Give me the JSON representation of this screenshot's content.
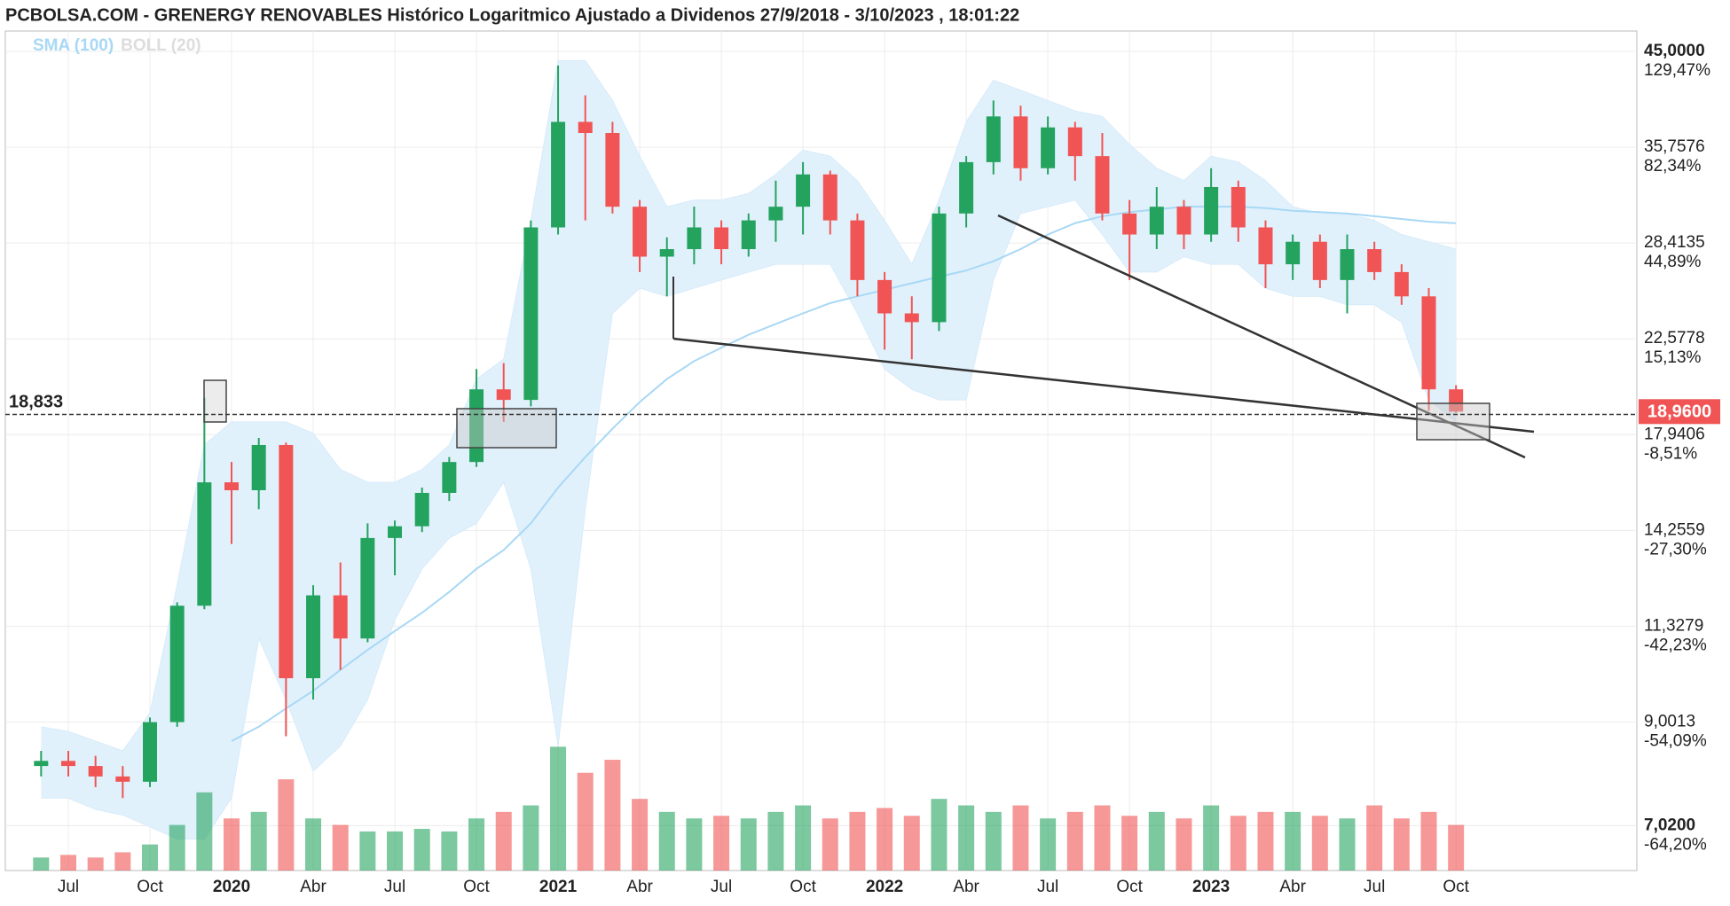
{
  "chart_data": {
    "type": "candlestick",
    "title": "PCBOLSA.COM - GRENERGY RENOVABLES Histórico Logaritmico Ajustado a Dividenos 27/9/2018 - 3/10/2023 , 18:01:22",
    "indicators": [
      {
        "name": "SMA (100)",
        "color": "#a8d8f5"
      },
      {
        "name": "BOLL (20)",
        "color": "#dddddd"
      }
    ],
    "log_scale": true,
    "grid": true,
    "up_color": "#24a35f",
    "down_color": "#f05454",
    "x": [
      "2019-06",
      "2019-07",
      "2019-08",
      "2019-09",
      "2019-10",
      "2019-11",
      "2019-12",
      "2020-01",
      "2020-02",
      "2020-03",
      "2020-04",
      "2020-05",
      "2020-06",
      "2020-07",
      "2020-08",
      "2020-09",
      "2020-10",
      "2020-11",
      "2020-12",
      "2021-01",
      "2021-02",
      "2021-03",
      "2021-04",
      "2021-05",
      "2021-06",
      "2021-07",
      "2021-08",
      "2021-09",
      "2021-10",
      "2021-11",
      "2021-12",
      "2022-01",
      "2022-02",
      "2022-03",
      "2022-04",
      "2022-05",
      "2022-06",
      "2022-07",
      "2022-08",
      "2022-09",
      "2022-10",
      "2022-11",
      "2022-12",
      "2023-01",
      "2023-02",
      "2023-03",
      "2023-04",
      "2023-05",
      "2023-06",
      "2023-07",
      "2023-08",
      "2023-09",
      "2023-10"
    ],
    "open": [
      8.1,
      8.2,
      8.1,
      7.9,
      7.8,
      9.0,
      11.9,
      16.0,
      15.7,
      17.5,
      10.0,
      12.2,
      11.0,
      14.0,
      14.4,
      15.6,
      16.8,
      20.0,
      19.5,
      29.5,
      38.0,
      37.0,
      31.0,
      27.5,
      28.0,
      29.5,
      28.0,
      30.0,
      31.0,
      33.5,
      30.0,
      26.0,
      24.0,
      23.5,
      30.5,
      34.5,
      38.5,
      34.0,
      37.5,
      35.0,
      30.5,
      29.0,
      31.0,
      29.0,
      32.5,
      29.5,
      27.0,
      28.5,
      26.0,
      28.0,
      26.5,
      25.0,
      20.0
    ],
    "high": [
      8.4,
      8.4,
      8.3,
      8.1,
      9.1,
      12.0,
      19.6,
      16.8,
      17.8,
      17.6,
      12.5,
      13.2,
      14.5,
      14.6,
      15.8,
      17.0,
      21.0,
      21.3,
      30.0,
      43.5,
      40.5,
      38.0,
      31.5,
      28.8,
      31.0,
      30.0,
      30.5,
      33.0,
      34.5,
      33.8,
      30.5,
      26.5,
      25.0,
      31.0,
      35.0,
      40.0,
      39.5,
      38.5,
      38.0,
      37.0,
      31.5,
      32.5,
      31.5,
      34.0,
      33.0,
      30.0,
      29.0,
      29.0,
      29.0,
      28.5,
      27.0,
      25.5,
      20.2
    ],
    "low": [
      7.9,
      7.9,
      7.7,
      7.5,
      7.7,
      8.9,
      11.8,
      13.8,
      15.0,
      8.7,
      9.5,
      10.2,
      10.9,
      12.8,
      14.2,
      15.3,
      16.6,
      18.5,
      19.2,
      29.0,
      30.0,
      30.5,
      26.5,
      25.0,
      27.0,
      27.0,
      27.5,
      28.5,
      29.0,
      29.0,
      25.0,
      22.0,
      21.5,
      23.0,
      29.5,
      33.5,
      33.0,
      33.5,
      33.0,
      30.0,
      26.0,
      28.0,
      28.0,
      28.5,
      28.5,
      25.5,
      26.0,
      25.5,
      24.0,
      26.0,
      24.5,
      19.0,
      18.9
    ],
    "close": [
      8.2,
      8.1,
      7.9,
      7.8,
      9.0,
      11.9,
      16.0,
      15.7,
      17.5,
      10.0,
      12.2,
      11.0,
      14.0,
      14.4,
      15.6,
      16.8,
      20.0,
      19.5,
      29.5,
      38.0,
      37.0,
      31.0,
      27.5,
      28.0,
      29.5,
      28.0,
      30.0,
      31.0,
      33.5,
      30.0,
      26.0,
      24.0,
      23.5,
      30.5,
      34.5,
      38.5,
      34.0,
      37.5,
      35.0,
      30.5,
      29.0,
      31.0,
      29.0,
      32.5,
      29.5,
      27.0,
      28.5,
      26.0,
      28.0,
      26.5,
      25.0,
      20.0,
      18.96
    ],
    "volume": [
      10,
      12,
      10,
      14,
      20,
      35,
      60,
      40,
      45,
      70,
      40,
      35,
      30,
      30,
      32,
      30,
      40,
      45,
      50,
      95,
      75,
      85,
      55,
      45,
      40,
      42,
      40,
      45,
      50,
      40,
      45,
      48,
      42,
      55,
      50,
      45,
      50,
      40,
      45,
      50,
      42,
      45,
      40,
      50,
      42,
      45,
      45,
      42,
      40,
      50,
      40,
      45,
      35
    ],
    "sma": [
      null,
      null,
      null,
      null,
      null,
      null,
      null,
      8.6,
      8.9,
      9.3,
      9.7,
      10.2,
      10.7,
      11.2,
      11.7,
      12.3,
      13.0,
      13.6,
      14.5,
      15.8,
      17.0,
      18.2,
      19.4,
      20.5,
      21.4,
      22.1,
      22.8,
      23.4,
      24.0,
      24.6,
      25.0,
      25.4,
      25.8,
      26.2,
      26.6,
      27.2,
      28.0,
      29.0,
      29.8,
      30.3,
      30.6,
      30.8,
      31.0,
      31.0,
      31.0,
      30.9,
      30.7,
      30.6,
      30.5,
      30.3,
      30.1,
      29.9,
      29.8
    ],
    "boll_upper": [
      8.9,
      8.8,
      8.6,
      8.4,
      9.2,
      12.5,
      17.5,
      18.5,
      18.5,
      18.5,
      18.0,
      16.5,
      16.0,
      16.0,
      16.5,
      17.5,
      20.5,
      21.5,
      30.0,
      44.0,
      44.0,
      40.0,
      35.0,
      31.0,
      31.5,
      31.5,
      32.0,
      33.5,
      35.5,
      35.0,
      33.0,
      30.0,
      27.0,
      31.5,
      38.0,
      42.0,
      41.0,
      40.0,
      39.0,
      38.5,
      36.0,
      34.0,
      33.0,
      35.0,
      34.5,
      33.0,
      31.0,
      30.5,
      30.5,
      30.0,
      29.0,
      28.5,
      28.0
    ],
    "boll_lower": [
      7.5,
      7.5,
      7.3,
      7.2,
      7.0,
      6.8,
      6.8,
      7.5,
      11.0,
      9.5,
      8.0,
      8.5,
      9.5,
      11.5,
      13.0,
      14.0,
      14.5,
      16.0,
      13.0,
      8.5,
      15.0,
      24.0,
      25.5,
      25.0,
      25.5,
      26.0,
      26.5,
      27.0,
      27.0,
      27.0,
      24.0,
      21.0,
      20.0,
      19.5,
      19.5,
      26.0,
      30.5,
      31.0,
      31.5,
      29.0,
      26.5,
      26.5,
      27.5,
      27.0,
      27.0,
      25.5,
      25.0,
      25.0,
      24.5,
      24.5,
      23.5,
      19.5,
      18.5
    ],
    "ylim": [
      6.33,
      47.66
    ],
    "yticks": [
      {
        "value": 45.0,
        "label": "45,0000"
      },
      {
        "value": 35.7576,
        "label": "35,7576"
      },
      {
        "value": 28.4135,
        "label": "28,4135"
      },
      {
        "value": 22.5778,
        "label": "22,5778"
      },
      {
        "value": 17.9406,
        "label": "17,9406"
      },
      {
        "value": 14.2559,
        "label": "14,2559"
      },
      {
        "value": 11.3279,
        "label": "11,3279"
      },
      {
        "value": 9.0013,
        "label": "9,0013"
      },
      {
        "value": 7.02,
        "label": "7,0200"
      }
    ],
    "y2lim": [
      -67.72,
      143.02
    ],
    "y2ticks": [
      {
        "value": 129.47,
        "label": "129,47%"
      },
      {
        "value": 82.34,
        "label": "82,34%"
      },
      {
        "value": 44.89,
        "label": "44,89%"
      },
      {
        "value": 15.13,
        "label": "15,13%"
      },
      {
        "value": -8.51,
        "label": "-8,51%"
      },
      {
        "value": -27.3,
        "label": "-27,30%"
      },
      {
        "value": -42.23,
        "label": "-42,23%"
      },
      {
        "value": -54.09,
        "label": "-54,09%"
      },
      {
        "value": -64.2,
        "label": "-64,20%"
      }
    ],
    "xticks": [
      {
        "value": "2019-07",
        "label": "Jul"
      },
      {
        "value": "2019-10",
        "label": "Oct"
      },
      {
        "value": "2020-01",
        "label": "2020"
      },
      {
        "value": "2020-04",
        "label": "Abr"
      },
      {
        "value": "2020-07",
        "label": "Jul"
      },
      {
        "value": "2020-10",
        "label": "Oct"
      },
      {
        "value": "2021-01",
        "label": "2021"
      },
      {
        "value": "2021-04",
        "label": "Abr"
      },
      {
        "value": "2021-07",
        "label": "Jul"
      },
      {
        "value": "2021-10",
        "label": "Oct"
      },
      {
        "value": "2022-01",
        "label": "2022"
      },
      {
        "value": "2022-04",
        "label": "Abr"
      },
      {
        "value": "2022-07",
        "label": "Jul"
      },
      {
        "value": "2022-10",
        "label": "Oct"
      },
      {
        "value": "2023-01",
        "label": "2023"
      },
      {
        "value": "2023-04",
        "label": "Abr"
      },
      {
        "value": "2023-07",
        "label": "Jul"
      },
      {
        "value": "2023-10",
        "label": "Oct"
      }
    ],
    "reference_line": {
      "value": 18.833,
      "label": "18,833"
    },
    "last_price": {
      "value": 18.96,
      "label": "18,9600",
      "color": "#f05454"
    }
  }
}
